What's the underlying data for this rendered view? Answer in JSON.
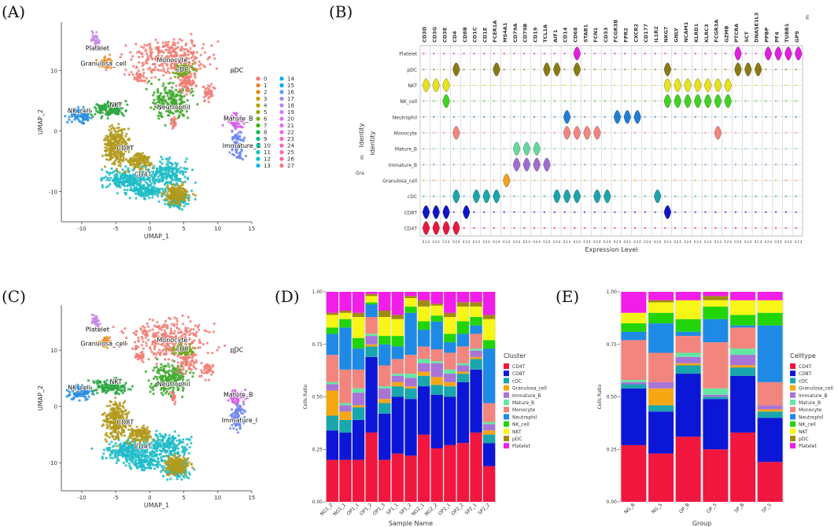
{
  "panel_labels": [
    "(A)",
    "(B)",
    "(C)",
    "(D)",
    "(E)"
  ],
  "chart_data": [
    {
      "type": "scatter",
      "panel": "A",
      "xlabel": "UMAP_1",
      "ylabel": "UMAP_2",
      "xlim": [
        -13,
        15
      ],
      "ylim": [
        -15,
        18
      ],
      "xticks": [
        "-10",
        "-5",
        "0",
        "5",
        "10",
        "15"
      ],
      "xtick_values": [
        -10,
        -5,
        0,
        5,
        10,
        15
      ],
      "yticks": [
        "10",
        "0",
        "-10"
      ],
      "ytick_values": [
        10,
        0,
        -10
      ],
      "cluster_labels": [
        {
          "text": "Platelet",
          "x": -7.7,
          "y": 13.3
        },
        {
          "text": "Granulosa_cell",
          "x": -6.8,
          "y": 10.8
        },
        {
          "text": "Monocyte",
          "x": 3.3,
          "y": 11.4
        },
        {
          "text": "cDC",
          "x": 4.8,
          "y": 9.8
        },
        {
          "text": "pDC",
          "x": 12.8,
          "y": 9.7
        },
        {
          "text": "Neutrophil",
          "x": 3.5,
          "y": 3.6
        },
        {
          "text": "NKT",
          "x": -5.0,
          "y": 4.0
        },
        {
          "text": "NK_cell",
          "x": -10.4,
          "y": 3.0
        },
        {
          "text": "Mature_B",
          "x": 13.0,
          "y": 1.7
        },
        {
          "text": "Immature_B",
          "x": 13.5,
          "y": -2.8
        },
        {
          "text": "CD8T",
          "x": -3.6,
          "y": -3.2
        },
        {
          "text": "CD4T",
          "x": -1.0,
          "y": -7.5
        }
      ],
      "legend_clusters": [
        "0",
        "1",
        "2",
        "3",
        "4",
        "5",
        "6",
        "7",
        "8",
        "9",
        "10",
        "11",
        "12",
        "13",
        "14",
        "15",
        "16",
        "17",
        "18",
        "19",
        "20",
        "21",
        "22",
        "23",
        "24",
        "25",
        "26",
        "27"
      ]
    },
    {
      "type": "violin",
      "panel": "B",
      "xlabel": "Expression Level",
      "ylabel": "Identity",
      "genes": [
        "CD3D",
        "CD3G",
        "CD3E",
        "CD4",
        "CD8B",
        "CD1C",
        "CD1E",
        "FCER1A",
        "MS4A1",
        "CD79A",
        "CD79B",
        "CD19",
        "TCL1A",
        "AIF1",
        "CD14",
        "CD68",
        "STAB1",
        "FCN1",
        "CD33",
        "FCGR3B",
        "FPR2",
        "CXCR2",
        "CD177",
        "IL1R2",
        "NKG7",
        "GNLY",
        "NCAM1",
        "KLRD1",
        "KLRC3",
        "FCGR3A",
        "GZMB",
        "PTCRA",
        "SCT",
        "DNASE1L3",
        "PPBP",
        "PF4",
        "TUBB1",
        "GP9"
      ],
      "identities": [
        "Platelet",
        "pDC",
        "NKT",
        "NK_cell",
        "Neutrophil",
        "Monocyte",
        "Mature_B",
        "Immature_B",
        "Granulosa_cell",
        "cDC",
        "CD8T",
        "CD4T"
      ],
      "extra_labels": [
        "Identity",
        "Gra",
        "m",
        "m"
      ],
      "markers": {
        "Platelet": [
          "CD68",
          "PTCRA",
          "PPBP",
          "PF4",
          "TUBB1",
          "GP9"
        ],
        "pDC": [
          "CD4",
          "FCER1A",
          "TCL1A",
          "AIF1",
          "CD68",
          "NKG7",
          "PTCRA",
          "SCT",
          "DNASE1L3"
        ],
        "NKT": [
          "CD3D",
          "CD3G",
          "CD3E",
          "NKG7",
          "GNLY",
          "NCAM1",
          "KLRD1",
          "KLRC3",
          "FCGR3A",
          "GZMB"
        ],
        "NK_cell": [
          "CD3E",
          "NKG7",
          "GNLY",
          "NCAM1",
          "KLRD1",
          "KLRC3",
          "FCGR3A",
          "GZMB"
        ],
        "Neutrophil": [
          "CD14",
          "FCGR3B",
          "FPR2",
          "CXCR2"
        ],
        "Monocyte": [
          "CD4",
          "CD14",
          "CD68",
          "STAB1",
          "FCN1",
          "FCGR3A"
        ],
        "Mature_B": [
          "CD79A",
          "CD79B",
          "CD19"
        ],
        "Immature_B": [
          "CD79A",
          "CD79B",
          "CD19",
          "TCL1A"
        ],
        "Granulosa_cell": [
          "MS4A1"
        ],
        "cDC": [
          "CD4",
          "CD1C",
          "CD1E",
          "FCER1A",
          "AIF1",
          "CD14",
          "CD68",
          "FCN1",
          "CD33",
          "IL1R2"
        ],
        "CD8T": [
          "CD3D",
          "CD3G",
          "CD3E",
          "CD8B",
          "NKG7"
        ],
        "CD4T": [
          "CD3D",
          "CD3G",
          "CD3E",
          "CD4"
        ]
      }
    },
    {
      "type": "scatter",
      "panel": "C",
      "xlabel": "UMAP_1",
      "ylabel": "UMAP_2",
      "xlim": [
        -13,
        15
      ],
      "ylim": [
        -15,
        18
      ],
      "xticks": [
        "-10",
        "-5",
        "0",
        "5",
        "10",
        "15"
      ],
      "xtick_values": [
        -10,
        -5,
        0,
        5,
        10,
        15
      ],
      "yticks": [
        "10",
        "0",
        "-10"
      ],
      "ytick_values": [
        10,
        0,
        -10
      ],
      "cluster_labels": [
        {
          "text": "Platelet",
          "x": -7.7,
          "y": 13.3
        },
        {
          "text": "Granulosa_cell",
          "x": -6.8,
          "y": 10.8
        },
        {
          "text": "Monocyte",
          "x": 3.3,
          "y": 11.4
        },
        {
          "text": "cDC",
          "x": 4.8,
          "y": 9.8
        },
        {
          "text": "pDC",
          "x": 12.8,
          "y": 9.7
        },
        {
          "text": "Neutrophil",
          "x": 3.5,
          "y": 3.6
        },
        {
          "text": "NKT",
          "x": -5.0,
          "y": 4.0
        },
        {
          "text": "NK_cell",
          "x": -10.4,
          "y": 3.0
        },
        {
          "text": "Mature_B",
          "x": 13.0,
          "y": 1.7
        },
        {
          "text": "Immature_I",
          "x": 13.2,
          "y": -2.8
        },
        {
          "text": "CD8T",
          "x": -3.6,
          "y": -3.2
        },
        {
          "text": "CD4T",
          "x": -1.0,
          "y": -7.5
        }
      ]
    },
    {
      "type": "bar",
      "stacked": true,
      "panel": "D",
      "xlabel": "Sample Name",
      "ylabel": "Cells Ratio",
      "ylim": [
        0,
        1
      ],
      "yticks": [
        "0.00",
        "0.25",
        "0.50",
        "0.75",
        "1.00"
      ],
      "legend_title": "Cluster",
      "categories": [
        "NG1_2",
        "NG1_1",
        "OP1_1",
        "OP1_2",
        "OP1_3",
        "SP1_1",
        "SP1_2",
        "NG2_1",
        "NG2_2",
        "OP2_1",
        "OP2_2",
        "SP2_1",
        "SP2_2"
      ],
      "series": [
        {
          "name": "CD4T",
          "values": [
            0.2,
            0.2,
            0.2,
            0.33,
            0.2,
            0.23,
            0.22,
            0.32,
            0.27,
            0.27,
            0.28,
            0.33,
            0.17
          ]
        },
        {
          "name": "CD8T",
          "values": [
            0.14,
            0.13,
            0.19,
            0.36,
            0.22,
            0.27,
            0.27,
            0.23,
            0.27,
            0.23,
            0.29,
            0.3,
            0.11
          ]
        },
        {
          "name": "cDC",
          "values": [
            0.07,
            0.06,
            0.06,
            0.05,
            0.05,
            0.05,
            0.05,
            0.05,
            0.05,
            0.05,
            0.04,
            0.05,
            0.04
          ]
        },
        {
          "name": "Granulosa_cell",
          "values": [
            0.12,
            0.04,
            0.01,
            0.01,
            0.02,
            0.02,
            0.01,
            0.02,
            0.04,
            0.02,
            0.01,
            0.01,
            0.02
          ]
        },
        {
          "name": "Immature_B",
          "values": [
            0.03,
            0.03,
            0.06,
            0.04,
            0.05,
            0.03,
            0.04,
            0.04,
            0.07,
            0.04,
            0.03,
            0.03,
            0.03
          ]
        },
        {
          "name": "Mature_B",
          "values": [
            0.01,
            0.01,
            0.02,
            0.01,
            0.01,
            0.01,
            0.02,
            0.02,
            0.01,
            0.02,
            0.01,
            0.01,
            0.01
          ]
        },
        {
          "name": "Monocyte",
          "values": [
            0.13,
            0.16,
            0.09,
            0.08,
            0.1,
            0.07,
            0.09,
            0.06,
            0.06,
            0.08,
            0.08,
            0.07,
            0.09
          ]
        },
        {
          "name": "Neutrophil",
          "values": [
            0.1,
            0.2,
            0.1,
            0.06,
            0.1,
            0.06,
            0.2,
            0.08,
            0.14,
            0.05,
            0.06,
            0.04,
            0.26
          ]
        },
        {
          "name": "NK_cell",
          "values": [
            0.03,
            0.04,
            0.05,
            0.01,
            0.04,
            0.05,
            0.03,
            0.04,
            0.03,
            0.04,
            0.06,
            0.04,
            0.04
          ]
        },
        {
          "name": "NKT",
          "values": [
            0.06,
            0.03,
            0.1,
            0.03,
            0.09,
            0.08,
            0.04,
            0.07,
            0.05,
            0.08,
            0.07,
            0.05,
            0.1
          ]
        },
        {
          "name": "pDC",
          "values": [
            0.01,
            0.01,
            0.02,
            0.01,
            0.03,
            0.02,
            0.01,
            0.03,
            0.01,
            0.02,
            0.02,
            0.02,
            0.02
          ]
        },
        {
          "name": "Platelet",
          "values": [
            0.1,
            0.09,
            0.1,
            0.01,
            0.09,
            0.11,
            0.02,
            0.04,
            0.06,
            0.1,
            0.05,
            0.05,
            0.11
          ]
        }
      ]
    },
    {
      "type": "bar",
      "stacked": true,
      "panel": "E",
      "xlabel": "Group",
      "ylabel": "Cells Ratio",
      "ylim": [
        0,
        1
      ],
      "yticks": [
        "0.00",
        "0.25",
        "0.50",
        "0.75",
        "1.00"
      ],
      "legend_title": "Celltype",
      "categories": [
        "NG_B",
        "NG_S",
        "OP_B",
        "OP_S",
        "SP_B",
        "SP_S"
      ],
      "series": [
        {
          "name": "CD4T",
          "values": [
            0.27,
            0.23,
            0.31,
            0.25,
            0.33,
            0.19
          ]
        },
        {
          "name": "CD8T",
          "values": [
            0.27,
            0.2,
            0.3,
            0.24,
            0.27,
            0.21
          ]
        },
        {
          "name": "cDC",
          "values": [
            0.02,
            0.03,
            0.04,
            0.01,
            0.04,
            0.03
          ]
        },
        {
          "name": "Granulosa_cell",
          "values": [
            0.0,
            0.08,
            0.01,
            0.0,
            0.01,
            0.01
          ]
        },
        {
          "name": "Immature_B",
          "values": [
            0.01,
            0.03,
            0.03,
            0.01,
            0.05,
            0.02
          ]
        },
        {
          "name": "Mature_B",
          "values": [
            0.01,
            0.0,
            0.02,
            0.03,
            0.03,
            0.0
          ]
        },
        {
          "name": "Monocyte",
          "values": [
            0.19,
            0.14,
            0.08,
            0.22,
            0.1,
            0.11
          ]
        },
        {
          "name": "Neutrophil",
          "values": [
            0.04,
            0.14,
            0.02,
            0.11,
            0.01,
            0.27
          ]
        },
        {
          "name": "NK_cell",
          "values": [
            0.04,
            0.05,
            0.06,
            0.06,
            0.05,
            0.06
          ]
        },
        {
          "name": "NKT",
          "values": [
            0.05,
            0.05,
            0.09,
            0.03,
            0.07,
            0.06
          ]
        },
        {
          "name": "pDC",
          "values": [
            0.0,
            0.01,
            0.0,
            0.02,
            0.0,
            0.0
          ]
        },
        {
          "name": "Platelet",
          "values": [
            0.1,
            0.04,
            0.04,
            0.02,
            0.04,
            0.04
          ]
        }
      ]
    }
  ],
  "colors": {
    "CD4T": "#f1173f",
    "CD8T": "#0c16d6",
    "cDC": "#1aa6ad",
    "Granulosa_cell": "#f5a712",
    "Immature_B": "#a974d6",
    "Mature_B": "#63e8a4",
    "Monocyte": "#f2857e",
    "Neutrophil": "#1f8ae6",
    "NK_cell": "#22d40a",
    "NKT": "#f8f616",
    "pDC": "#a18a12",
    "Platelet": "#f01ee8"
  },
  "umap_colors": {
    "CD4T": "#1fbcc8",
    "CD8T": "#b19a1c",
    "NKT": "#2aa63f",
    "NK_cell": "#2a8fe0",
    "Neutrophil": "#3fa82c",
    "Monocyte": "#f17d74",
    "cDC": "#76a51a",
    "pDC": "#c03a60",
    "Mature_B": "#d55ee8",
    "Immature_B": "#6f86ee",
    "Platelet": "#c68be6",
    "Granulosa_cell": "#e8912c"
  },
  "legend_cluster_colors": [
    "#f8766d",
    "#f07e33",
    "#e28a00",
    "#d09400",
    "#b79f00",
    "#9aa600",
    "#74ae00",
    "#39b600",
    "#00bb44",
    "#00bd74",
    "#00bf96",
    "#00c0b6",
    "#00bfc4",
    "#00b8e5",
    "#00afef",
    "#00a5ff",
    "#619cff",
    "#8f91ff",
    "#b385ff",
    "#cf78ff",
    "#e36ef6",
    "#f066ea",
    "#f962dd",
    "#ff61c9",
    "#ff63b6",
    "#ff67a4",
    "#ff6c90",
    "#fd717d"
  ],
  "violin_colors": {
    "Platelet": "#e11ee0",
    "pDC": "#8a7a12",
    "NKT": "#e8e21a",
    "NK_cell": "#3fd420",
    "Neutrophil": "#1f7fd6",
    "Monocyte": "#f2857e",
    "Mature_B": "#63d89a",
    "Immature_B": "#a36bd0",
    "Granulosa_cell": "#f0a020",
    "cDC": "#1aa6ad",
    "CD8T": "#1015c8",
    "CD4T": "#e8173e"
  }
}
